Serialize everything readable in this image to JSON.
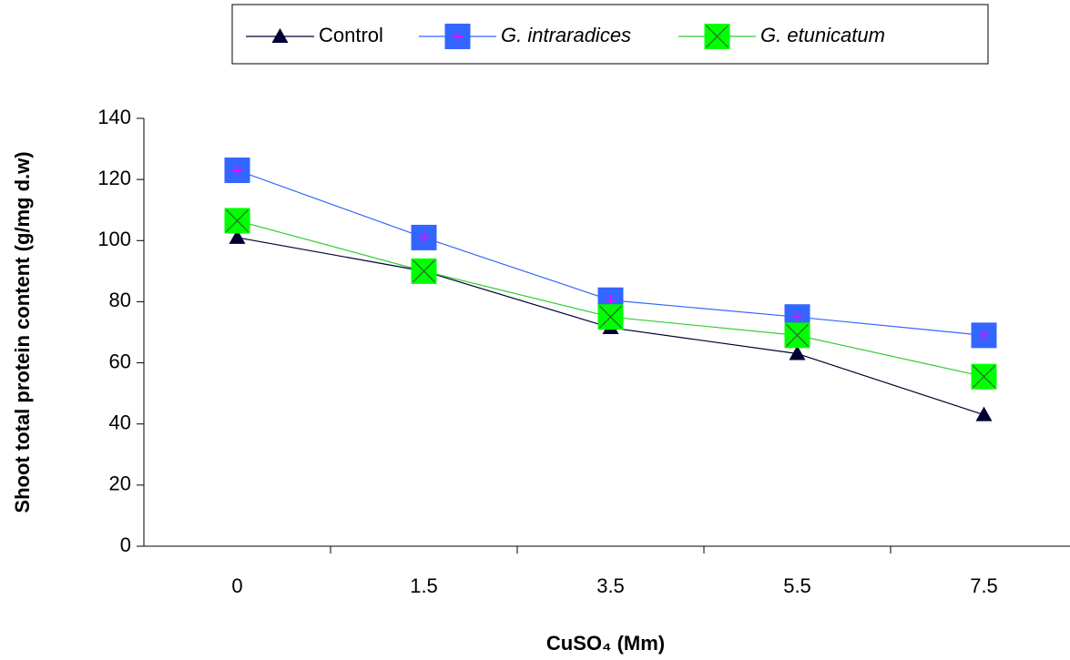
{
  "chart_data": {
    "type": "line",
    "x_label": "CuSO₄ (Mm)",
    "y_label": "Shoot total protein content (g/mg d.w)",
    "categories": [
      "0",
      "1.5",
      "3.5",
      "5.5",
      "7.5"
    ],
    "series": [
      {
        "name": "Control",
        "color": "#000033",
        "marker": "triangle",
        "values": [
          101,
          90,
          71.5,
          63,
          43
        ]
      },
      {
        "name": "G. intraradices",
        "color": "#3366ff",
        "marker": "square-plus",
        "values": [
          123,
          101,
          80.5,
          75,
          69
        ]
      },
      {
        "name": "G. etunicatum",
        "color": "#33cc33",
        "marker": "square-x",
        "values": [
          106.5,
          90,
          75,
          69,
          55.5
        ]
      }
    ],
    "ylim": [
      0,
      140
    ],
    "yticks": [
      0,
      20,
      40,
      60,
      80,
      100,
      120,
      140
    ],
    "legend": "top"
  }
}
